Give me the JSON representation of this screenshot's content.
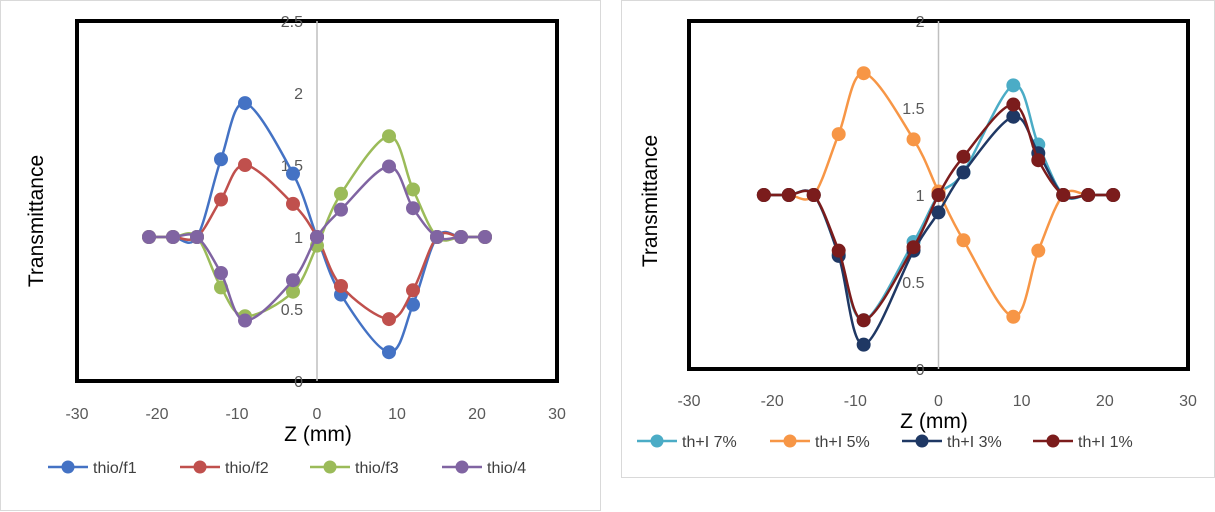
{
  "chart_data": [
    {
      "type": "scatter",
      "title": "",
      "xlabel": "Z (mm)",
      "ylabel": "Transmittance",
      "xlim": [
        -30,
        30
      ],
      "ylim": [
        0,
        2.5
      ],
      "xticks": [
        -30,
        -20,
        -10,
        0,
        10,
        20,
        30
      ],
      "yticks": [
        0,
        0.5,
        1,
        1.5,
        2,
        2.5
      ],
      "x_tick_labels": [
        "-30",
        "-20",
        "-10",
        "0",
        "10",
        "20",
        "30"
      ],
      "y_tick_labels": [
        "0",
        "0.5",
        "1",
        "1.5",
        "2",
        "2.5"
      ],
      "grid": false,
      "legend_position": "bottom",
      "x": [
        -21,
        -18,
        -15,
        -12,
        -9,
        -3,
        0,
        3,
        9,
        12,
        15,
        18,
        21
      ],
      "series": [
        {
          "name": "thio/f1",
          "color": "#4472c4",
          "values": [
            1,
            1,
            1,
            1.54,
            1.93,
            1.44,
            1,
            0.6,
            0.2,
            0.53,
            1,
            1,
            1
          ]
        },
        {
          "name": "thio/f2",
          "color": "#c0504d",
          "values": [
            1,
            1,
            1,
            1.26,
            1.5,
            1.23,
            1,
            0.66,
            0.43,
            0.63,
            1,
            1,
            1
          ]
        },
        {
          "name": "thio/f3",
          "color": "#9bbb59",
          "values": [
            1,
            1,
            1,
            0.65,
            0.45,
            0.62,
            0.94,
            1.3,
            1.7,
            1.33,
            1,
            1,
            1
          ]
        },
        {
          "name": "thio/4",
          "color": "#8064a2",
          "values": [
            1,
            1,
            1,
            0.75,
            0.42,
            0.7,
            1,
            1.19,
            1.49,
            1.2,
            1,
            1,
            1
          ]
        }
      ]
    },
    {
      "type": "scatter",
      "title": "",
      "xlabel": "Z (mm)",
      "ylabel": "Transmittance",
      "xlim": [
        -30,
        30
      ],
      "ylim": [
        0,
        2
      ],
      "xticks": [
        -30,
        -20,
        -10,
        0,
        10,
        20,
        30
      ],
      "yticks": [
        0,
        0.5,
        1,
        1.5,
        2
      ],
      "x_tick_labels": [
        "-30",
        "-20",
        "-10",
        "0",
        "10",
        "20",
        "30"
      ],
      "y_tick_labels": [
        "0",
        "0.5",
        "1",
        "1.5",
        "2"
      ],
      "grid": false,
      "legend_position": "bottom",
      "x": [
        -21,
        -18,
        -15,
        -12,
        -9,
        -3,
        0,
        3,
        9,
        12,
        15,
        18,
        21
      ],
      "series": [
        {
          "name": "th+I 7%",
          "color": "#4bacc6",
          "values": [
            1,
            1,
            1,
            0.66,
            0.28,
            0.73,
            1,
            1.13,
            1.63,
            1.29,
            1,
            1,
            1
          ]
        },
        {
          "name": "th+I 5%",
          "color": "#f79646",
          "values": [
            1,
            1,
            1,
            1.35,
            1.7,
            1.32,
            1.02,
            0.74,
            0.3,
            0.68,
            1,
            1,
            1
          ]
        },
        {
          "name": "th+I 3%",
          "color": "#1f3864",
          "values": [
            1,
            1,
            1,
            0.65,
            0.14,
            0.68,
            0.9,
            1.13,
            1.45,
            1.24,
            1,
            1,
            1
          ]
        },
        {
          "name": "th+I 1%",
          "color": "#7b1c1c",
          "values": [
            1,
            1,
            1,
            0.68,
            0.28,
            0.7,
            1,
            1.22,
            1.52,
            1.2,
            1,
            1,
            1
          ]
        }
      ]
    }
  ]
}
